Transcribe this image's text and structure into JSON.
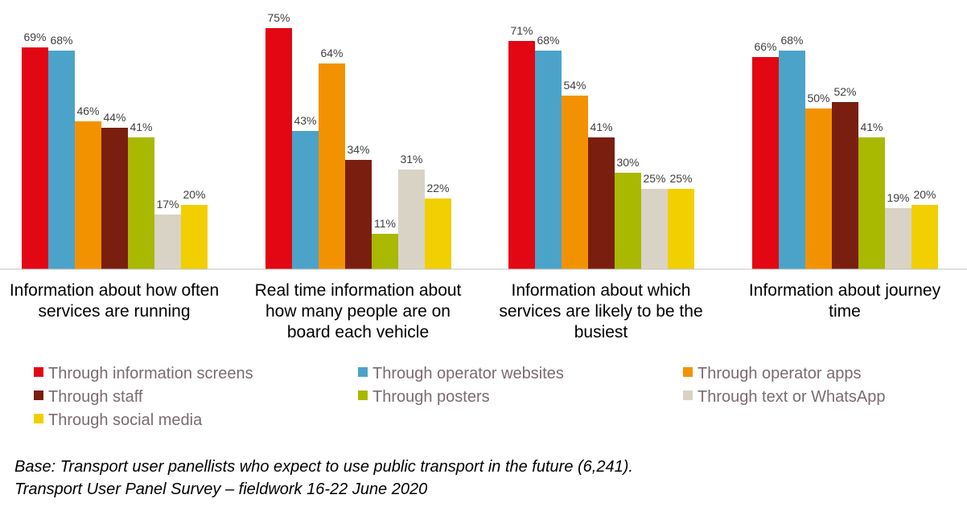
{
  "chart_data": {
    "type": "bar",
    "categories": [
      [
        "Information about how often",
        "services are running"
      ],
      [
        "Real time information about",
        "how many people are on",
        "board each vehicle"
      ],
      [
        "Information about which",
        "services are likely to be the",
        "busiest"
      ],
      [
        "Information about journey",
        "time"
      ]
    ],
    "series": [
      {
        "name": "Through information screens",
        "color": "#e30613",
        "values": [
          69,
          75,
          71,
          66
        ]
      },
      {
        "name": "Through operator websites",
        "color": "#4ba3c9",
        "values": [
          68,
          43,
          68,
          68
        ]
      },
      {
        "name": "Through operator apps",
        "color": "#f39200",
        "values": [
          46,
          64,
          54,
          50
        ]
      },
      {
        "name": "Through staff",
        "color": "#7a1e10",
        "values": [
          44,
          34,
          41,
          52
        ]
      },
      {
        "name": "Through posters",
        "color": "#a9b800",
        "values": [
          41,
          11,
          30,
          41
        ]
      },
      {
        "name": "Through text or WhatsApp",
        "color": "#d9d3c6",
        "values": [
          17,
          31,
          25,
          19
        ]
      },
      {
        "name": "Through social media",
        "color": "#f2cf00",
        "values": [
          20,
          22,
          25,
          20
        ]
      }
    ],
    "value_suffix": "%",
    "ylim": [
      0,
      80
    ],
    "grid": false,
    "legend_position": "bottom"
  },
  "footnote": {
    "line1": "Base: Transport user panellists who expect to use public transport in the future (6,241).",
    "line2": "Transport User Panel Survey – fieldwork 16-22 June 2020"
  }
}
